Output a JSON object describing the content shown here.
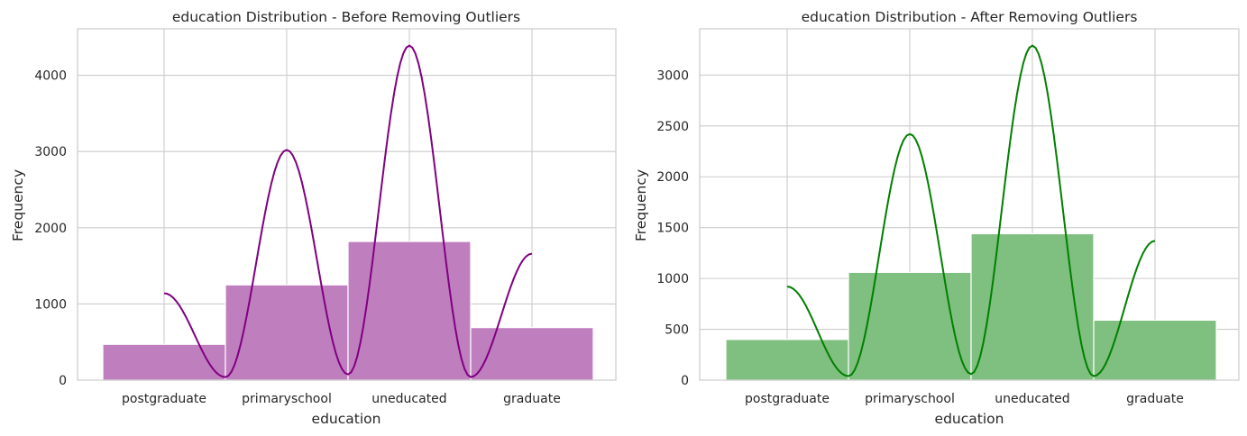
{
  "chart_data": [
    {
      "type": "bar",
      "title": "education Distribution - Before Removing Outliers",
      "xlabel": "education",
      "ylabel": "Frequency",
      "categories": [
        "postgraduate",
        "primaryschool",
        "uneducated",
        "graduate"
      ],
      "values": [
        470,
        1250,
        1820,
        690
      ],
      "kde_peaks": [
        1140,
        3020,
        4390,
        1660
      ],
      "yticks": [
        "0",
        "1000",
        "2000",
        "3000",
        "4000"
      ],
      "ytick_values": [
        0,
        1000,
        2000,
        3000,
        4000
      ],
      "ylim": [
        0,
        4610
      ],
      "grid": true,
      "bar_color": "#bf7fbf",
      "line_color": "#800080"
    },
    {
      "type": "bar",
      "title": "education Distribution - After Removing Outliers",
      "xlabel": "education",
      "ylabel": "Frequency",
      "categories": [
        "postgraduate",
        "primaryschool",
        "uneducated",
        "graduate"
      ],
      "values": [
        400,
        1060,
        1440,
        590
      ],
      "kde_peaks": [
        920,
        2420,
        3290,
        1370
      ],
      "yticks": [
        "0",
        "500",
        "1000",
        "1500",
        "2000",
        "2500",
        "3000"
      ],
      "ytick_values": [
        0,
        500,
        1000,
        1500,
        2000,
        2500,
        3000
      ],
      "ylim": [
        0,
        3455
      ],
      "grid": true,
      "bar_color": "#7fbf7f",
      "line_color": "#008000"
    }
  ]
}
